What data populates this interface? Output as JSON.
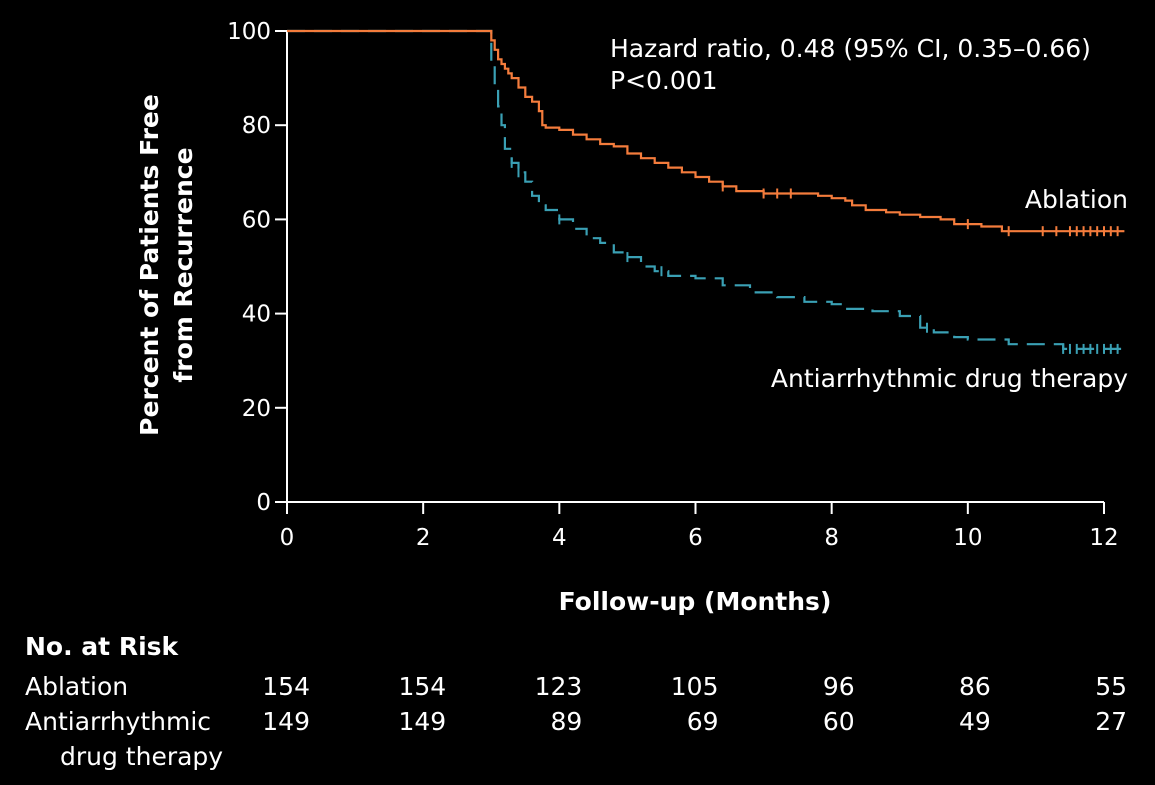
{
  "chart_data": {
    "type": "line",
    "xlabel": "Follow-up (Months)",
    "ylabel_lines": [
      "Percent of Patients Free",
      "from Recurrence"
    ],
    "xlim": [
      0,
      12
    ],
    "ylim": [
      0,
      100
    ],
    "x_ticks": [
      0,
      2,
      4,
      6,
      8,
      10,
      12
    ],
    "y_ticks": [
      0,
      20,
      40,
      60,
      80,
      100
    ],
    "grid": false,
    "annotations": [
      "Hazard ratio, 0.48 (95% CI, 0.35–0.66)",
      "P<0.001"
    ],
    "colors": {
      "ablation": "#f47c3c",
      "drug": "#3aa0b4"
    },
    "series": [
      {
        "name": "Ablation",
        "style": "solid-step",
        "x": [
          0,
          2.97,
          3.0,
          3.05,
          3.1,
          3.15,
          3.2,
          3.25,
          3.3,
          3.4,
          3.5,
          3.6,
          3.7,
          3.75,
          3.8,
          4.0,
          4.2,
          4.4,
          4.6,
          4.8,
          5.0,
          5.2,
          5.4,
          5.6,
          5.8,
          6.0,
          6.2,
          6.4,
          6.6,
          7.0,
          7.4,
          7.8,
          8.0,
          8.2,
          8.3,
          8.5,
          8.8,
          9.0,
          9.3,
          9.6,
          9.8,
          10.2,
          10.5,
          12.3
        ],
        "y": [
          100,
          100,
          98,
          96,
          94,
          93,
          92,
          91,
          90,
          88,
          86,
          85,
          83,
          80,
          79.5,
          79,
          78,
          77,
          76,
          75.5,
          74,
          73,
          72,
          71,
          70,
          69,
          68,
          67,
          66,
          65.5,
          65.5,
          65,
          64.5,
          64,
          63,
          62,
          61.5,
          61,
          60.5,
          60,
          59,
          58.5,
          57.5,
          57.5
        ],
        "censor_x": [
          6.4,
          7.0,
          7.2,
          7.4,
          10.0,
          10.6,
          11.1,
          11.3,
          11.5,
          11.6,
          11.7,
          11.8,
          11.9,
          12.0,
          12.1,
          12.2
        ]
      },
      {
        "name": "Antiarrhythmic drug therapy",
        "style": "dashed-step",
        "x": [
          0,
          2.97,
          3.0,
          3.05,
          3.1,
          3.15,
          3.2,
          3.3,
          3.4,
          3.5,
          3.6,
          3.7,
          3.8,
          4.0,
          4.2,
          4.4,
          4.6,
          4.8,
          5.0,
          5.2,
          5.4,
          5.6,
          6.0,
          6.4,
          6.8,
          7.2,
          7.6,
          8.0,
          8.2,
          8.6,
          9.0,
          9.3,
          9.5,
          9.8,
          10.0,
          10.6,
          11.4,
          12.3
        ],
        "y": [
          100,
          100,
          93,
          88,
          84,
          80,
          75,
          72,
          70,
          68,
          65,
          63,
          62,
          60,
          58,
          56,
          55,
          53,
          52,
          50,
          49,
          48,
          47.5,
          46,
          44.5,
          43.5,
          42.5,
          42,
          41,
          40.5,
          39.5,
          37,
          36,
          35,
          34.5,
          33.5,
          32.5,
          32
        ],
        "censor_x": [
          3.3,
          3.4,
          4.0,
          5.0,
          5.5,
          9.4,
          11.4,
          11.5,
          11.6,
          11.7,
          11.8,
          11.9,
          12.0,
          12.1,
          12.2
        ]
      }
    ]
  },
  "at_risk": {
    "title": "No. at Risk",
    "rows": [
      {
        "label_lines": [
          "Ablation"
        ],
        "values": [
          "154",
          "154",
          "123",
          "105",
          "96",
          "86",
          "55"
        ]
      },
      {
        "label_lines": [
          "Antiarrhythmic",
          "drug therapy"
        ],
        "values": [
          "149",
          "149",
          "89",
          "69",
          "60",
          "49",
          "27"
        ]
      }
    ]
  }
}
